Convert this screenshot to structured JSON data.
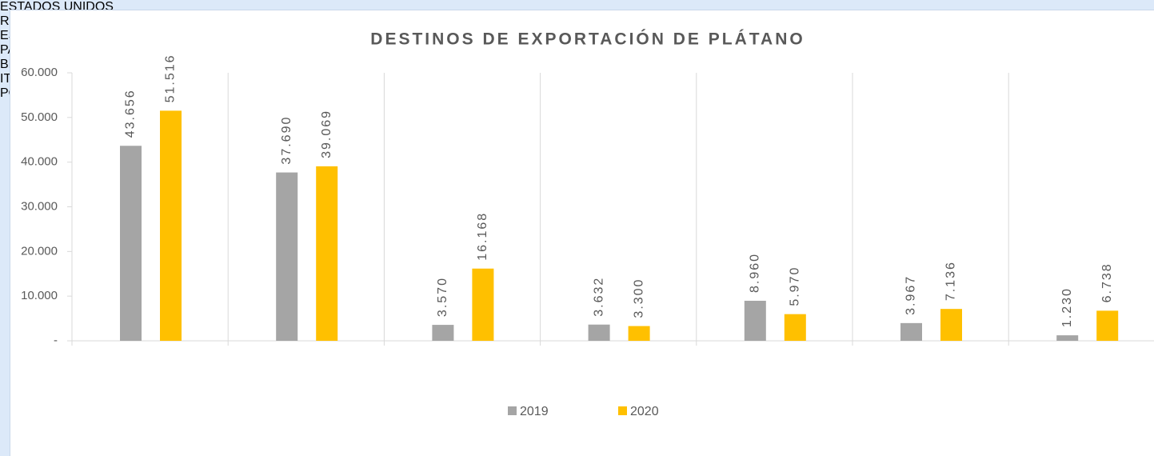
{
  "chart_data": {
    "type": "bar",
    "title": "DESTINOS DE EXPORTACIÓN DE PLÁTANO",
    "categories": [
      "ESTADOS UNIDOS",
      "REINO UNIDO",
      "ESPAÑA",
      "PAÍSES BAJOS (HOLANDA)",
      "BELGICA",
      "ITALIA",
      "PORTUGAL"
    ],
    "series": [
      {
        "name": "2019",
        "color": "#a5a5a5",
        "values": [
          43656,
          37690,
          3570,
          3632,
          8960,
          3967,
          1230
        ],
        "value_labels": [
          "43.656",
          "37.690",
          "3.570",
          "3.632",
          "8.960",
          "3.967",
          "1.230"
        ]
      },
      {
        "name": "2020",
        "color": "#ffc000",
        "values": [
          51516,
          39069,
          16168,
          3300,
          5970,
          7136,
          6738
        ],
        "value_labels": [
          "51.516",
          "39.069",
          "16.168",
          "3.300",
          "5.970",
          "7.136",
          "6.738"
        ]
      }
    ],
    "ylim": [
      0,
      60000
    ],
    "yticks": [
      {
        "value": 0,
        "label": "-"
      },
      {
        "value": 10000,
        "label": "10.000"
      },
      {
        "value": 20000,
        "label": "20.000"
      },
      {
        "value": 30000,
        "label": "30.000"
      },
      {
        "value": 40000,
        "label": "40.000"
      },
      {
        "value": 50000,
        "label": "50.000"
      },
      {
        "value": 60000,
        "label": "60.000"
      }
    ],
    "legend": "bottom"
  }
}
